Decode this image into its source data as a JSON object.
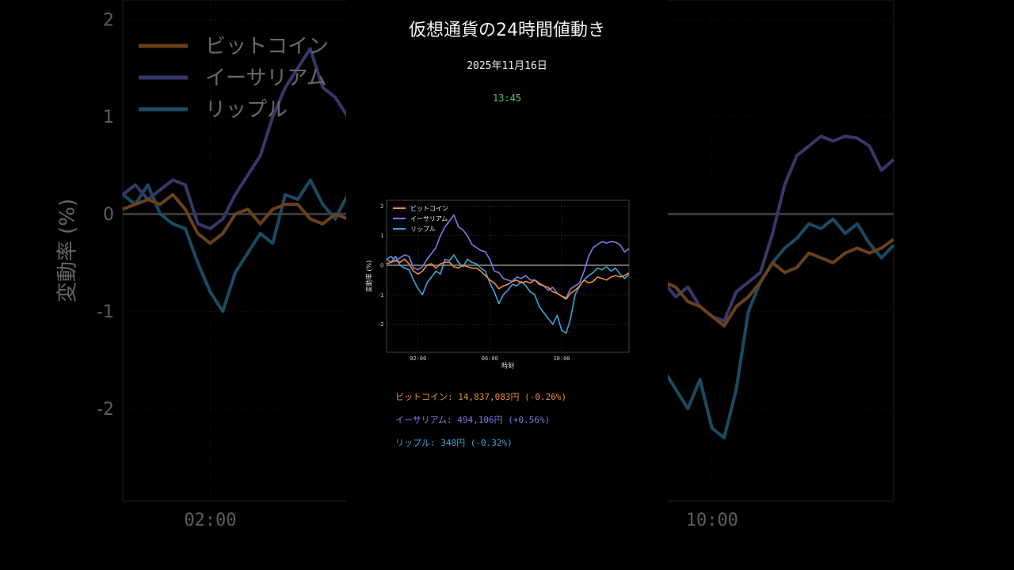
{
  "header": {
    "title": "仮想通貨の24時間値動き",
    "date": "2025年11月16日",
    "time": "13:45"
  },
  "colors": {
    "background": "#000000",
    "bitcoin": "#e8903a",
    "ethereum": "#7b7be8",
    "ripple": "#3aa6d8",
    "zero_line": "#808080",
    "time_color": "#4ccd68"
  },
  "prices": [
    {
      "name": "ビットコイン",
      "sep": ": ",
      "value": "14,837,083円 (-0.26%)"
    },
    {
      "name": "イーサリアム",
      "sep": ": ",
      "value": "494,106円 (+0.56%)"
    },
    {
      "name": "リップル",
      "sep": ": ",
      "value": "348円 (-0.32%)"
    }
  ],
  "chart_data": {
    "type": "line",
    "xlabel": "時刻",
    "ylabel": "変動率 (%)",
    "xlim": [
      0.25,
      13.75
    ],
    "ylim": [
      -2.95,
      2.2
    ],
    "xticks": [
      2,
      6,
      10
    ],
    "xtick_labels": [
      "02:00",
      "06:00",
      "10:00"
    ],
    "yticks": [
      -2,
      -1,
      0,
      1,
      2
    ],
    "ytick_labels": [
      "-2",
      "-1",
      "0",
      "1",
      "2"
    ],
    "grid": true,
    "legend_position": "top-left",
    "x": [
      0.25,
      0.5,
      0.75,
      1.0,
      1.25,
      1.5,
      1.75,
      2.0,
      2.25,
      2.5,
      2.75,
      3.0,
      3.25,
      3.5,
      3.75,
      4.0,
      4.25,
      4.5,
      4.75,
      5.0,
      5.25,
      5.5,
      5.75,
      6.0,
      6.25,
      6.5,
      6.75,
      7.0,
      7.25,
      7.5,
      7.75,
      8.0,
      8.25,
      8.5,
      8.75,
      9.0,
      9.25,
      9.5,
      9.75,
      10.0,
      10.25,
      10.5,
      10.75,
      11.0,
      11.25,
      11.5,
      11.75,
      12.0,
      12.25,
      12.5,
      12.75,
      13.0,
      13.25,
      13.5,
      13.75
    ],
    "series": [
      {
        "name": "ビットコイン",
        "values": [
          0.05,
          0.1,
          0.15,
          0.1,
          0.2,
          0.05,
          -0.2,
          -0.3,
          -0.2,
          0.0,
          0.05,
          -0.1,
          0.05,
          0.1,
          0.1,
          -0.05,
          -0.1,
          0.0,
          -0.05,
          -0.1,
          -0.1,
          -0.2,
          -0.35,
          -0.5,
          -0.6,
          -0.8,
          -0.7,
          -0.65,
          -0.55,
          -0.5,
          -0.6,
          -0.55,
          -0.6,
          -0.5,
          -0.65,
          -0.7,
          -0.75,
          -0.9,
          -0.95,
          -1.05,
          -1.15,
          -0.95,
          -0.85,
          -0.7,
          -0.5,
          -0.6,
          -0.55,
          -0.4,
          -0.45,
          -0.5,
          -0.4,
          -0.35,
          -0.4,
          -0.35,
          -0.26
        ]
      },
      {
        "name": "イーサリアム",
        "values": [
          0.2,
          0.3,
          0.15,
          0.25,
          0.35,
          0.3,
          -0.1,
          -0.15,
          -0.05,
          0.2,
          0.4,
          0.6,
          1.0,
          1.3,
          1.5,
          1.7,
          1.3,
          1.2,
          1.0,
          0.7,
          0.6,
          0.5,
          0.45,
          0.2,
          -0.2,
          -0.25,
          -0.45,
          -0.5,
          -0.55,
          -0.4,
          -0.45,
          -0.35,
          -0.5,
          -0.5,
          -0.6,
          -0.7,
          -0.85,
          -0.75,
          -0.95,
          -1.05,
          -1.1,
          -0.8,
          -0.7,
          -0.6,
          -0.2,
          0.3,
          0.6,
          0.7,
          0.8,
          0.75,
          0.8,
          0.78,
          0.7,
          0.45,
          0.56
        ]
      },
      {
        "name": "リップル",
        "values": [
          0.2,
          0.1,
          0.3,
          0.0,
          -0.1,
          -0.15,
          -0.5,
          -0.8,
          -1.0,
          -0.6,
          -0.4,
          -0.2,
          -0.3,
          0.2,
          0.15,
          0.35,
          0.1,
          -0.05,
          0.2,
          0.1,
          0.05,
          -0.1,
          -0.2,
          -0.6,
          -0.9,
          -1.3,
          -1.0,
          -0.85,
          -0.65,
          -0.7,
          -0.55,
          -0.7,
          -0.9,
          -1.0,
          -1.4,
          -1.6,
          -1.8,
          -2.0,
          -1.7,
          -2.2,
          -2.3,
          -1.8,
          -1.0,
          -0.7,
          -0.5,
          -0.35,
          -0.25,
          -0.1,
          -0.15,
          -0.05,
          -0.2,
          -0.1,
          -0.3,
          -0.45,
          -0.32
        ]
      }
    ]
  }
}
